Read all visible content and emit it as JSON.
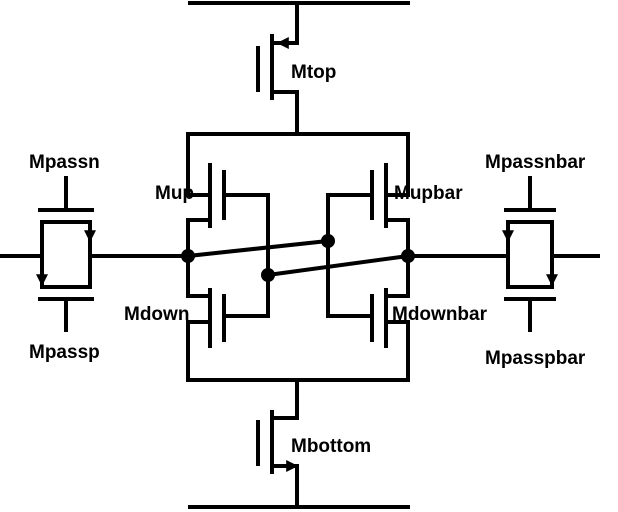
{
  "diagram": {
    "labels": {
      "mtop": "Mtop",
      "mup": "Mup",
      "mupbar": "Mupbar",
      "mdown": "Mdown",
      "mdownbar": "Mdownbar",
      "mbottom": "Mbottom",
      "mpassn": "Mpassn",
      "mpassp": "Mpassp",
      "mpassnbar": "Mpassnbar",
      "mpasspbar": "Mpasspbar"
    },
    "colors": {
      "line": "#000000",
      "background": "#ffffff"
    }
  }
}
